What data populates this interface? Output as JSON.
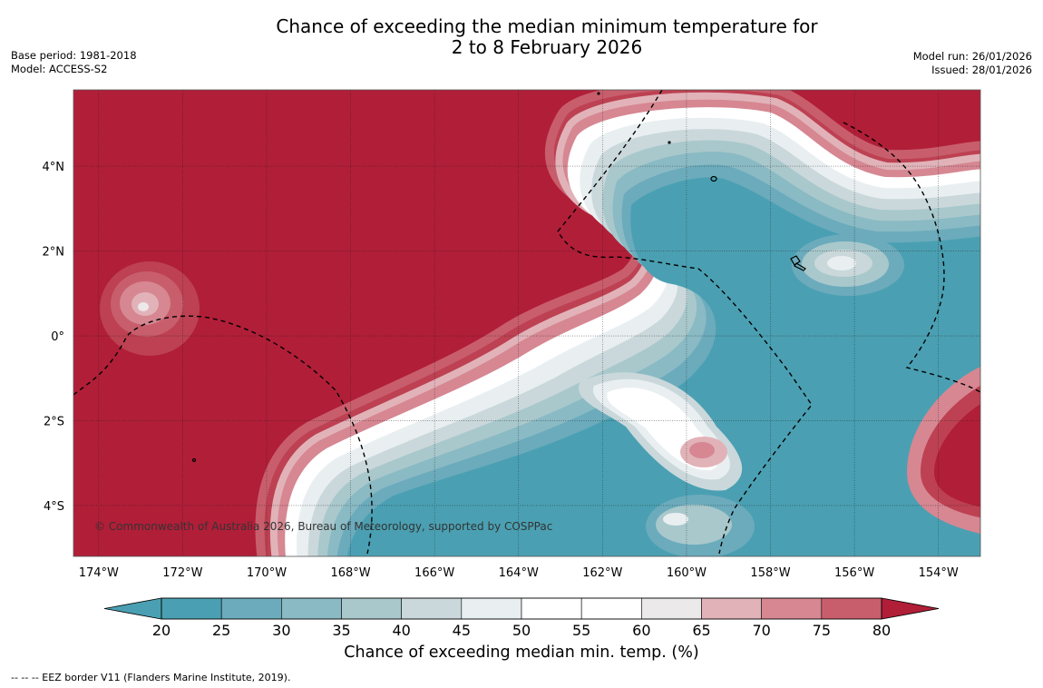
{
  "title": {
    "line1": "Chance of exceeding the median minimum temperature for",
    "line2": "2 to 8 February 2026"
  },
  "meta_left": {
    "base_period": "Base period: 1981-2018",
    "model": "Model: ACCESS-S2"
  },
  "meta_right": {
    "model_run": "Model run: 26/01/2026",
    "issued": "Issued: 28/01/2026"
  },
  "map": {
    "lon_labels": [
      "174°W",
      "172°W",
      "170°W",
      "168°W",
      "166°W",
      "164°W",
      "162°W",
      "160°W",
      "158°W",
      "156°W",
      "154°W"
    ],
    "lon_values": [
      -174,
      -172,
      -170,
      -168,
      -166,
      -164,
      -162,
      -160,
      -158,
      -156,
      -154
    ],
    "lat_labels": [
      "4°N",
      "2°N",
      "0°",
      "2°S",
      "4°S"
    ],
    "lat_values": [
      4,
      2,
      0,
      -2,
      -4
    ],
    "lon_range": [
      -174.6,
      -153.0
    ],
    "lat_range": [
      -5.2,
      5.8
    ],
    "copyright": "© Commonwealth of Australia 2026, Bureau of Meteorology, supported by COSPPac"
  },
  "colorbar": {
    "ticks": [
      "20",
      "25",
      "30",
      "35",
      "40",
      "45",
      "50",
      "55",
      "60",
      "65",
      "70",
      "75",
      "80"
    ],
    "colors": [
      "#4aa0b2",
      "#6babbc",
      "#8abac4",
      "#a9c8cc",
      "#cad8db",
      "#e9eff1",
      "#ffffff",
      "#ffffff",
      "#ebe9ea",
      "#e1b3b9",
      "#d68792",
      "#c85e6c",
      "#bd4152"
    ],
    "extend_low": "#4aa0b2",
    "extend_high": "#b11e38",
    "label": "Chance of exceeding median min. temp. (%)"
  },
  "footnote": "--  --  -- EEZ border V11 (Flanders Marine Institute, 2019)."
}
